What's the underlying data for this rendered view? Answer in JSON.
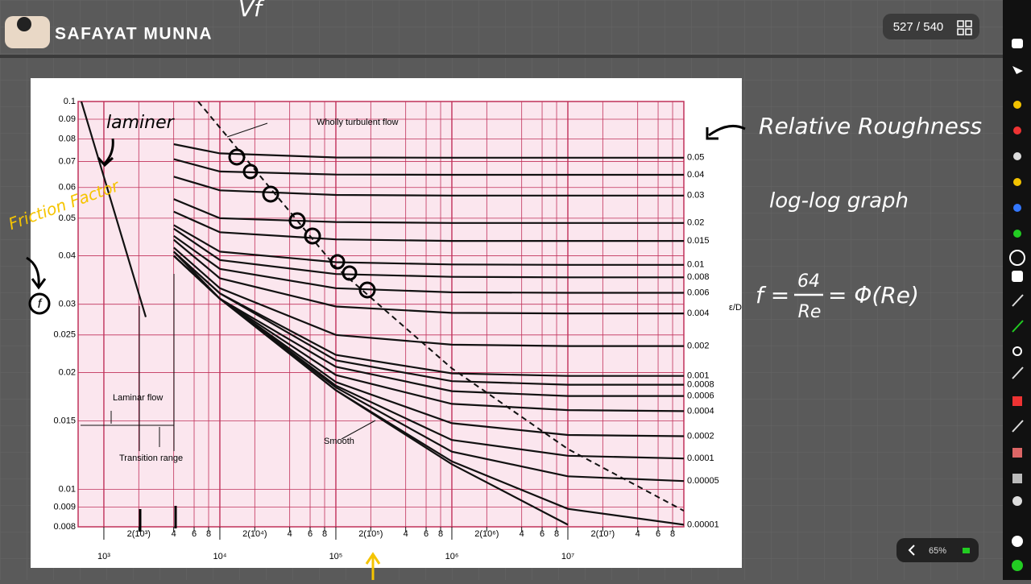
{
  "header": {
    "name": "SAFAYAT MUNNA",
    "page": "527 / 540",
    "scribble": "Vf"
  },
  "chart_data": {
    "type": "line",
    "xscale": "log",
    "yscale": "log",
    "grid": true,
    "roughness_label": "ε/D",
    "annotations": [
      "Transition range"
    ],
    "xlim": [
      600,
      100000000
    ],
    "ylim": [
      0.008,
      0.1
    ],
    "xticks": [
      {
        "value": 1000,
        "label": "10³"
      },
      {
        "value": 2000,
        "label": "2(10³)"
      },
      {
        "value": 4000,
        "label": "4"
      },
      {
        "value": 6000,
        "label": "6"
      },
      {
        "value": 8000,
        "label": "8"
      },
      {
        "value": 10000,
        "label": "10⁴"
      },
      {
        "value": 20000,
        "label": "2(10⁴)"
      },
      {
        "value": 40000,
        "label": "4"
      },
      {
        "value": 60000,
        "label": "6"
      },
      {
        "value": 80000,
        "label": "8"
      },
      {
        "value": 100000,
        "label": "10⁵"
      },
      {
        "value": 200000,
        "label": "2(10⁵)"
      },
      {
        "value": 400000,
        "label": "4"
      },
      {
        "value": 600000,
        "label": "6"
      },
      {
        "value": 800000,
        "label": "8"
      },
      {
        "value": 1000000,
        "label": "10⁶"
      },
      {
        "value": 2000000,
        "label": "2(10⁶)"
      },
      {
        "value": 4000000,
        "label": "4"
      },
      {
        "value": 6000000,
        "label": "6"
      },
      {
        "value": 8000000,
        "label": "8"
      },
      {
        "value": 10000000,
        "label": "10⁷"
      },
      {
        "value": 20000000,
        "label": "2(10⁷)"
      },
      {
        "value": 40000000,
        "label": "4"
      },
      {
        "value": 60000000,
        "label": "6"
      },
      {
        "value": 80000000,
        "label": "8"
      }
    ],
    "yticks": [
      0.008,
      0.009,
      0.01,
      0.015,
      0.02,
      0.025,
      0.03,
      0.04,
      0.05,
      0.06,
      0.07,
      0.08,
      0.09,
      0.1
    ],
    "x": [
      4000,
      10000,
      100000,
      1000000,
      10000000,
      100000000
    ],
    "series": [
      {
        "name": "0.05",
        "color": "#111111",
        "values": [
          0.0776,
          0.0735,
          0.0717,
          0.0716,
          0.0716,
          0.0716
        ]
      },
      {
        "name": "0.04",
        "color": "#111111",
        "values": [
          0.071,
          0.066,
          0.0648,
          0.0647,
          0.0647,
          0.0647
        ]
      },
      {
        "name": "0.03",
        "color": "#111111",
        "values": [
          0.064,
          0.059,
          0.0574,
          0.0572,
          0.0572,
          0.0572
        ]
      },
      {
        "name": "0.02",
        "color": "#111111",
        "values": [
          0.056,
          0.05,
          0.0489,
          0.0486,
          0.0486,
          0.0486
        ]
      },
      {
        "name": "0.015",
        "color": "#111111",
        "values": [
          0.052,
          0.046,
          0.0441,
          0.0437,
          0.0437,
          0.0437
        ]
      },
      {
        "name": "0.01",
        "color": "#111111",
        "values": [
          0.048,
          0.041,
          0.0385,
          0.038,
          0.0379,
          0.0379
        ]
      },
      {
        "name": "0.008",
        "color": "#111111",
        "values": [
          0.047,
          0.039,
          0.0359,
          0.0353,
          0.0352,
          0.0352
        ]
      },
      {
        "name": "0.006",
        "color": "#111111",
        "values": [
          0.045,
          0.037,
          0.033,
          0.0322,
          0.0321,
          0.0321
        ]
      },
      {
        "name": "0.004",
        "color": "#111111",
        "values": [
          0.044,
          0.035,
          0.0296,
          0.0285,
          0.0284,
          0.0284
        ]
      },
      {
        "name": "0.002",
        "color": "#111111",
        "values": [
          0.042,
          0.033,
          0.025,
          0.0236,
          0.0234,
          0.0234
        ]
      },
      {
        "name": "0.001",
        "color": "#111111",
        "values": [
          0.041,
          0.032,
          0.0222,
          0.0199,
          0.0196,
          0.0196
        ]
      },
      {
        "name": "0.0008",
        "color": "#111111",
        "values": [
          0.041,
          0.032,
          0.0215,
          0.019,
          0.0186,
          0.0186
        ]
      },
      {
        "name": "0.0006",
        "color": "#111111",
        "values": [
          0.041,
          0.031,
          0.0207,
          0.0179,
          0.0174,
          0.0174
        ]
      },
      {
        "name": "0.0004",
        "color": "#111111",
        "values": [
          0.04,
          0.031,
          0.0197,
          0.0166,
          0.016,
          0.0159
        ]
      },
      {
        "name": "0.0002",
        "color": "#111111",
        "values": [
          0.04,
          0.031,
          0.0189,
          0.0148,
          0.0138,
          0.0137
        ]
      },
      {
        "name": "0.0001",
        "color": "#111111",
        "values": [
          0.04,
          0.031,
          0.0185,
          0.0134,
          0.0122,
          0.012
        ]
      },
      {
        "name": "0.00005",
        "color": "#111111",
        "values": [
          0.04,
          0.031,
          0.0183,
          0.0125,
          0.0108,
          0.0105
        ]
      },
      {
        "name": "0.00001",
        "color": "#111111",
        "values": [
          0.04,
          0.031,
          0.018,
          0.0118,
          0.0089,
          0.0081
        ]
      },
      {
        "name": "Smooth",
        "color": "#111111",
        "values": [
          0.04,
          0.031,
          0.018,
          0.0116,
          0.0081,
          null
        ]
      },
      {
        "name": "Laminar flow",
        "color": "#111111",
        "x": [
          640,
          2300
        ],
        "values": [
          0.1,
          0.0278
        ]
      },
      {
        "name": "Wholly turbulent flow",
        "color": "#111111",
        "dash": true,
        "x": [
          6500,
          100000,
          1000000,
          10000000,
          100000000
        ],
        "values": [
          0.1,
          0.0374,
          0.0205,
          0.0127,
          0.0088
        ]
      }
    ]
  },
  "notes": {
    "laminar": "laminer",
    "friction_factor": "Friction Factor",
    "f": "f",
    "relative_roughness": "Relative Roughness",
    "log_log": "log-log graph",
    "formula": {
      "lhs": "f =",
      "numerator": "64",
      "denominator": "Re",
      "rhs": "= Φ(Re)"
    }
  },
  "zoom": "65%"
}
